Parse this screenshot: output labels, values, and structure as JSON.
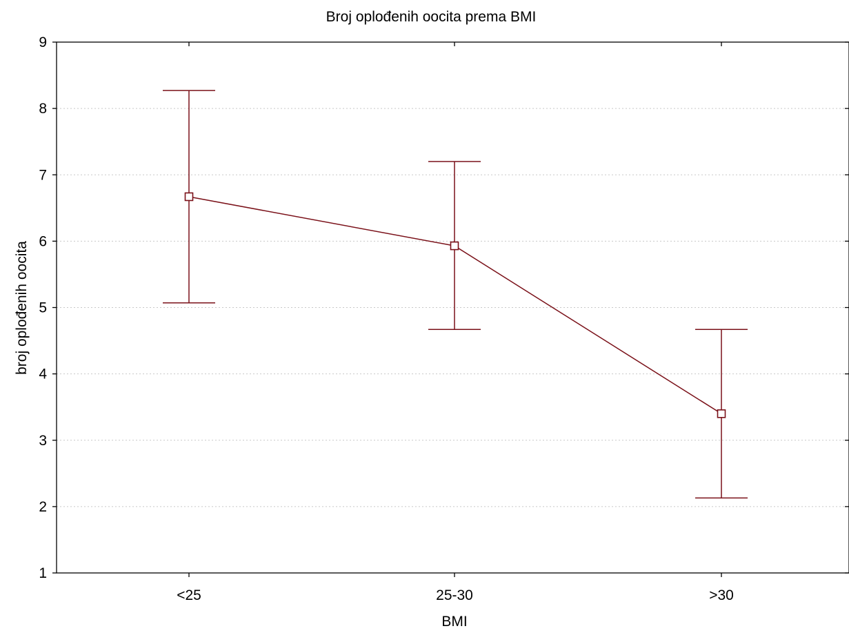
{
  "chart_data": {
    "type": "line",
    "title": "Broj oplođenih oocita prema BMI",
    "xlabel": "BMI",
    "ylabel": "broj oplođenih oocita",
    "categories": [
      "<25",
      "25-30",
      ">30"
    ],
    "yticks": [
      "1",
      "2",
      "3",
      "4",
      "5",
      "6",
      "7",
      "8",
      "9"
    ],
    "ylim": [
      1,
      9
    ],
    "grid": "horizontal dotted",
    "series": [
      {
        "values": [
          6.67,
          5.93,
          3.4
        ],
        "lower": [
          5.07,
          4.67,
          2.13
        ],
        "upper": [
          8.27,
          7.2,
          4.67
        ],
        "color": "#7a1018",
        "marker": "square"
      }
    ]
  }
}
